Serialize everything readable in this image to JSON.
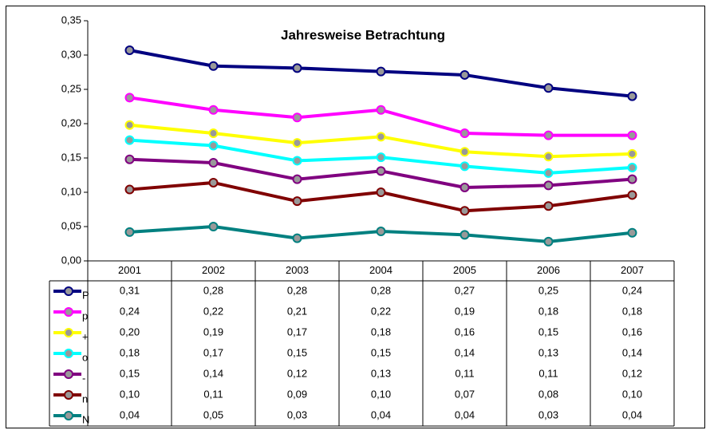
{
  "chart_data": {
    "type": "line",
    "title": "Jahresweise Betrachtung",
    "categories": [
      "2001",
      "2002",
      "2003",
      "2004",
      "2005",
      "2006",
      "2007"
    ],
    "ylim": [
      0,
      0.35
    ],
    "yticks": [
      {
        "value": 0,
        "label": "0,00"
      },
      {
        "value": 0.05,
        "label": "0,05"
      },
      {
        "value": 0.1,
        "label": "0,10"
      },
      {
        "value": 0.15,
        "label": "0,15"
      },
      {
        "value": 0.2,
        "label": "0,20"
      },
      {
        "value": 0.25,
        "label": "0,25"
      },
      {
        "value": 0.3,
        "label": "0,30"
      },
      {
        "value": 0.35,
        "label": "0,35"
      }
    ],
    "grid": false,
    "series": [
      {
        "name": "P",
        "color": "#000080",
        "values": [
          0.307,
          0.284,
          0.281,
          0.276,
          0.271,
          0.252,
          0.24
        ],
        "value_labels": [
          "0,31",
          "0,28",
          "0,28",
          "0,28",
          "0,27",
          "0,25",
          "0,24"
        ]
      },
      {
        "name": "p",
        "color": "#ff00ff",
        "values": [
          0.238,
          0.22,
          0.209,
          0.22,
          0.186,
          0.183,
          0.183
        ],
        "value_labels": [
          "0,24",
          "0,22",
          "0,21",
          "0,22",
          "0,19",
          "0,18",
          "0,18"
        ]
      },
      {
        "name": "+",
        "color": "#ffff00",
        "values": [
          0.198,
          0.186,
          0.172,
          0.181,
          0.159,
          0.152,
          0.156
        ],
        "value_labels": [
          "0,20",
          "0,19",
          "0,17",
          "0,18",
          "0,16",
          "0,15",
          "0,16"
        ]
      },
      {
        "name": "o",
        "color": "#00ffff",
        "values": [
          0.176,
          0.168,
          0.146,
          0.151,
          0.138,
          0.128,
          0.136
        ],
        "value_labels": [
          "0,18",
          "0,17",
          "0,15",
          "0,15",
          "0,14",
          "0,13",
          "0,14"
        ]
      },
      {
        "name": "-",
        "color": "#800080",
        "values": [
          0.148,
          0.143,
          0.119,
          0.131,
          0.107,
          0.11,
          0.119
        ],
        "value_labels": [
          "0,15",
          "0,14",
          "0,12",
          "0,13",
          "0,11",
          "0,11",
          "0,12"
        ]
      },
      {
        "name": "n",
        "color": "#800000",
        "values": [
          0.104,
          0.114,
          0.087,
          0.1,
          0.073,
          0.08,
          0.096
        ],
        "value_labels": [
          "0,10",
          "0,11",
          "0,09",
          "0,10",
          "0,07",
          "0,08",
          "0,10"
        ]
      },
      {
        "name": "N",
        "color": "#008080",
        "values": [
          0.042,
          0.05,
          0.033,
          0.043,
          0.038,
          0.028,
          0.041
        ],
        "value_labels": [
          "0,04",
          "0,05",
          "0,03",
          "0,04",
          "0,04",
          "0,03",
          "0,04"
        ]
      }
    ]
  }
}
